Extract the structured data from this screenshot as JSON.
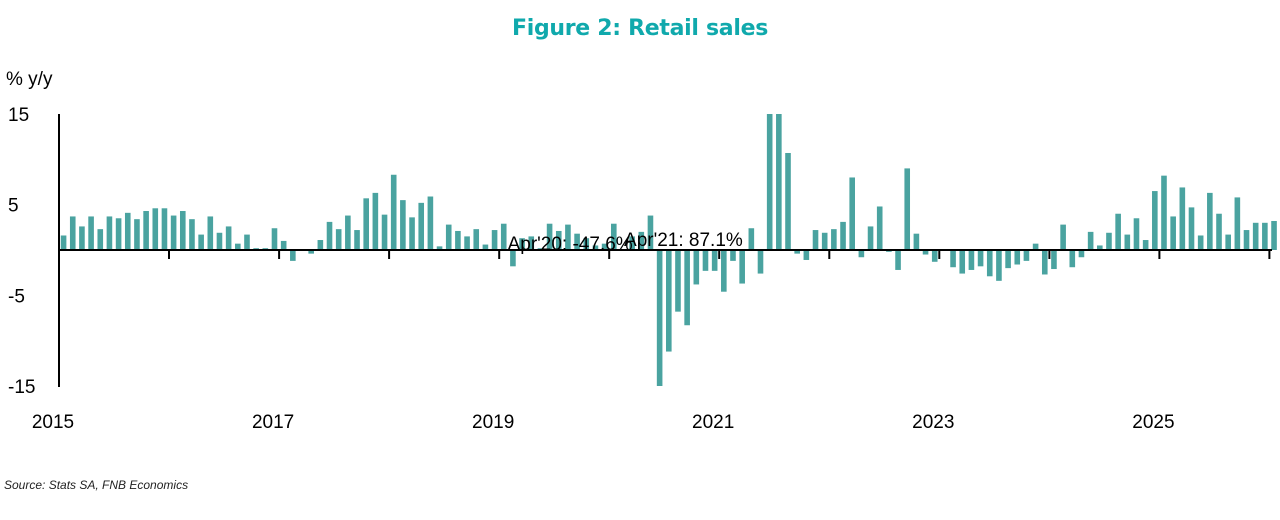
{
  "title": "Figure 2: Retail sales",
  "source": "Source: Stats SA, FNB Economics",
  "chart_data": {
    "type": "bar",
    "title": "Figure 2: Retail sales",
    "ylabel": "% y/y",
    "xlabel": "",
    "ylim": [
      -15,
      15
    ],
    "yticks": [
      15,
      5,
      -5,
      -15
    ],
    "xticks": [
      "2015",
      "2017",
      "2019",
      "2021",
      "2023",
      "2025"
    ],
    "grid": false,
    "bar_color": "#4aa3a0",
    "start": "2015-01",
    "annotations": [
      {
        "text": "Apr'21: 87.1%",
        "month": "2021-04"
      },
      {
        "text": "Apr'20: -47.6%",
        "month": "2020-04"
      }
    ],
    "series": [
      {
        "values": [
          1.6,
          3.7,
          2.6,
          3.7,
          2.3,
          3.7,
          3.5,
          4.1,
          3.4,
          4.3,
          4.6,
          4.6,
          3.8,
          4.3,
          3.4,
          1.7,
          3.7,
          1.9,
          2.6,
          0.7,
          1.7,
          0.2,
          0.2,
          2.4,
          1.0,
          -1.2,
          0.1,
          -0.4,
          1.1,
          3.1,
          2.3,
          3.8,
          2.2,
          5.7,
          6.3,
          3.9,
          8.3,
          5.5,
          3.6,
          5.2,
          5.9,
          0.4,
          2.8,
          2.1,
          1.5,
          2.3,
          0.6,
          2.2,
          2.9,
          -1.8,
          1.3,
          1.5,
          0.2,
          2.9,
          2.1,
          2.8,
          1.8,
          1.3,
          0.5,
          0.7,
          2.9,
          -0.1,
          1.5,
          2.0,
          3.8,
          -15.0,
          -11.2,
          -6.8,
          -8.3,
          -3.8,
          -2.3,
          -2.3,
          -4.6,
          -1.2,
          -3.7,
          2.4,
          -2.6,
          15.0,
          15.0,
          10.7,
          -0.4,
          -1.1,
          2.2,
          1.9,
          2.3,
          3.1,
          8.0,
          -0.8,
          2.6,
          4.8,
          -0.2,
          -2.2,
          9.0,
          1.8,
          -0.5,
          -1.3,
          -0.1,
          -1.9,
          -2.6,
          -2.2,
          -1.8,
          -2.9,
          -3.4,
          -2.0,
          -1.6,
          -1.2,
          0.7,
          -2.7,
          -2.1,
          2.8,
          -1.9,
          -0.8,
          2.0,
          0.5,
          1.9,
          4.0,
          1.7,
          3.5,
          1.1,
          6.5,
          8.2,
          3.7,
          6.9,
          4.7,
          1.6,
          6.3,
          4.0,
          1.7,
          5.8,
          2.2,
          3.0,
          3.0,
          3.2,
          2.6,
          4.2
        ]
      }
    ]
  }
}
